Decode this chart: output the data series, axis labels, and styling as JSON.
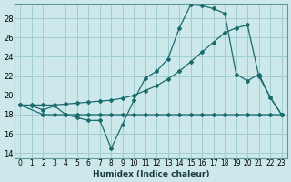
{
  "xlabel": "Humidex (Indice chaleur)",
  "bg_color": "#cde8ea",
  "grid_color": "#a0cdd0",
  "line_color": "#1a6b6e",
  "xlim": [
    -0.5,
    23.5
  ],
  "ylim": [
    13.5,
    29.5
  ],
  "xticks": [
    0,
    1,
    2,
    3,
    4,
    5,
    6,
    7,
    8,
    9,
    10,
    11,
    12,
    13,
    14,
    15,
    16,
    17,
    18,
    19,
    20,
    21,
    22,
    23
  ],
  "yticks": [
    14,
    16,
    18,
    20,
    22,
    24,
    26,
    28
  ],
  "line1_x": [
    0,
    1,
    2,
    3,
    4,
    5,
    6,
    7,
    8,
    9,
    10,
    11,
    12,
    13,
    14,
    15,
    16,
    17,
    18,
    19,
    20,
    21,
    22,
    23
  ],
  "line1_y": [
    19.0,
    18.9,
    18.5,
    18.9,
    18.0,
    17.7,
    17.4,
    17.4,
    14.5,
    17.0,
    19.5,
    21.8,
    22.5,
    23.8,
    27.0,
    29.4,
    29.3,
    29.0,
    28.5,
    22.2,
    21.5,
    22.2,
    19.8,
    18.0
  ],
  "line2_x": [
    0,
    1,
    2,
    3,
    4,
    5,
    6,
    7,
    8,
    9,
    10,
    11,
    12,
    13,
    14,
    15,
    16,
    17,
    18,
    19,
    20,
    21,
    22,
    23
  ],
  "line2_y": [
    19.0,
    19.0,
    19.0,
    19.0,
    19.1,
    19.2,
    19.3,
    19.4,
    19.5,
    19.7,
    20.0,
    20.5,
    21.0,
    21.7,
    22.5,
    23.5,
    24.5,
    25.5,
    26.5,
    27.0,
    27.3,
    22.0,
    19.8,
    18.0
  ],
  "line3_x": [
    0,
    2,
    3,
    4,
    5,
    6,
    7,
    8,
    9,
    10,
    11,
    12,
    13,
    14,
    15,
    16,
    17,
    18,
    19,
    20,
    21,
    22,
    23
  ],
  "line3_y": [
    19.0,
    18.0,
    18.0,
    18.0,
    18.0,
    18.0,
    18.0,
    18.0,
    18.0,
    18.0,
    18.0,
    18.0,
    18.0,
    18.0,
    18.0,
    18.0,
    18.0,
    18.0,
    18.0,
    18.0,
    18.0,
    18.0,
    18.0
  ]
}
